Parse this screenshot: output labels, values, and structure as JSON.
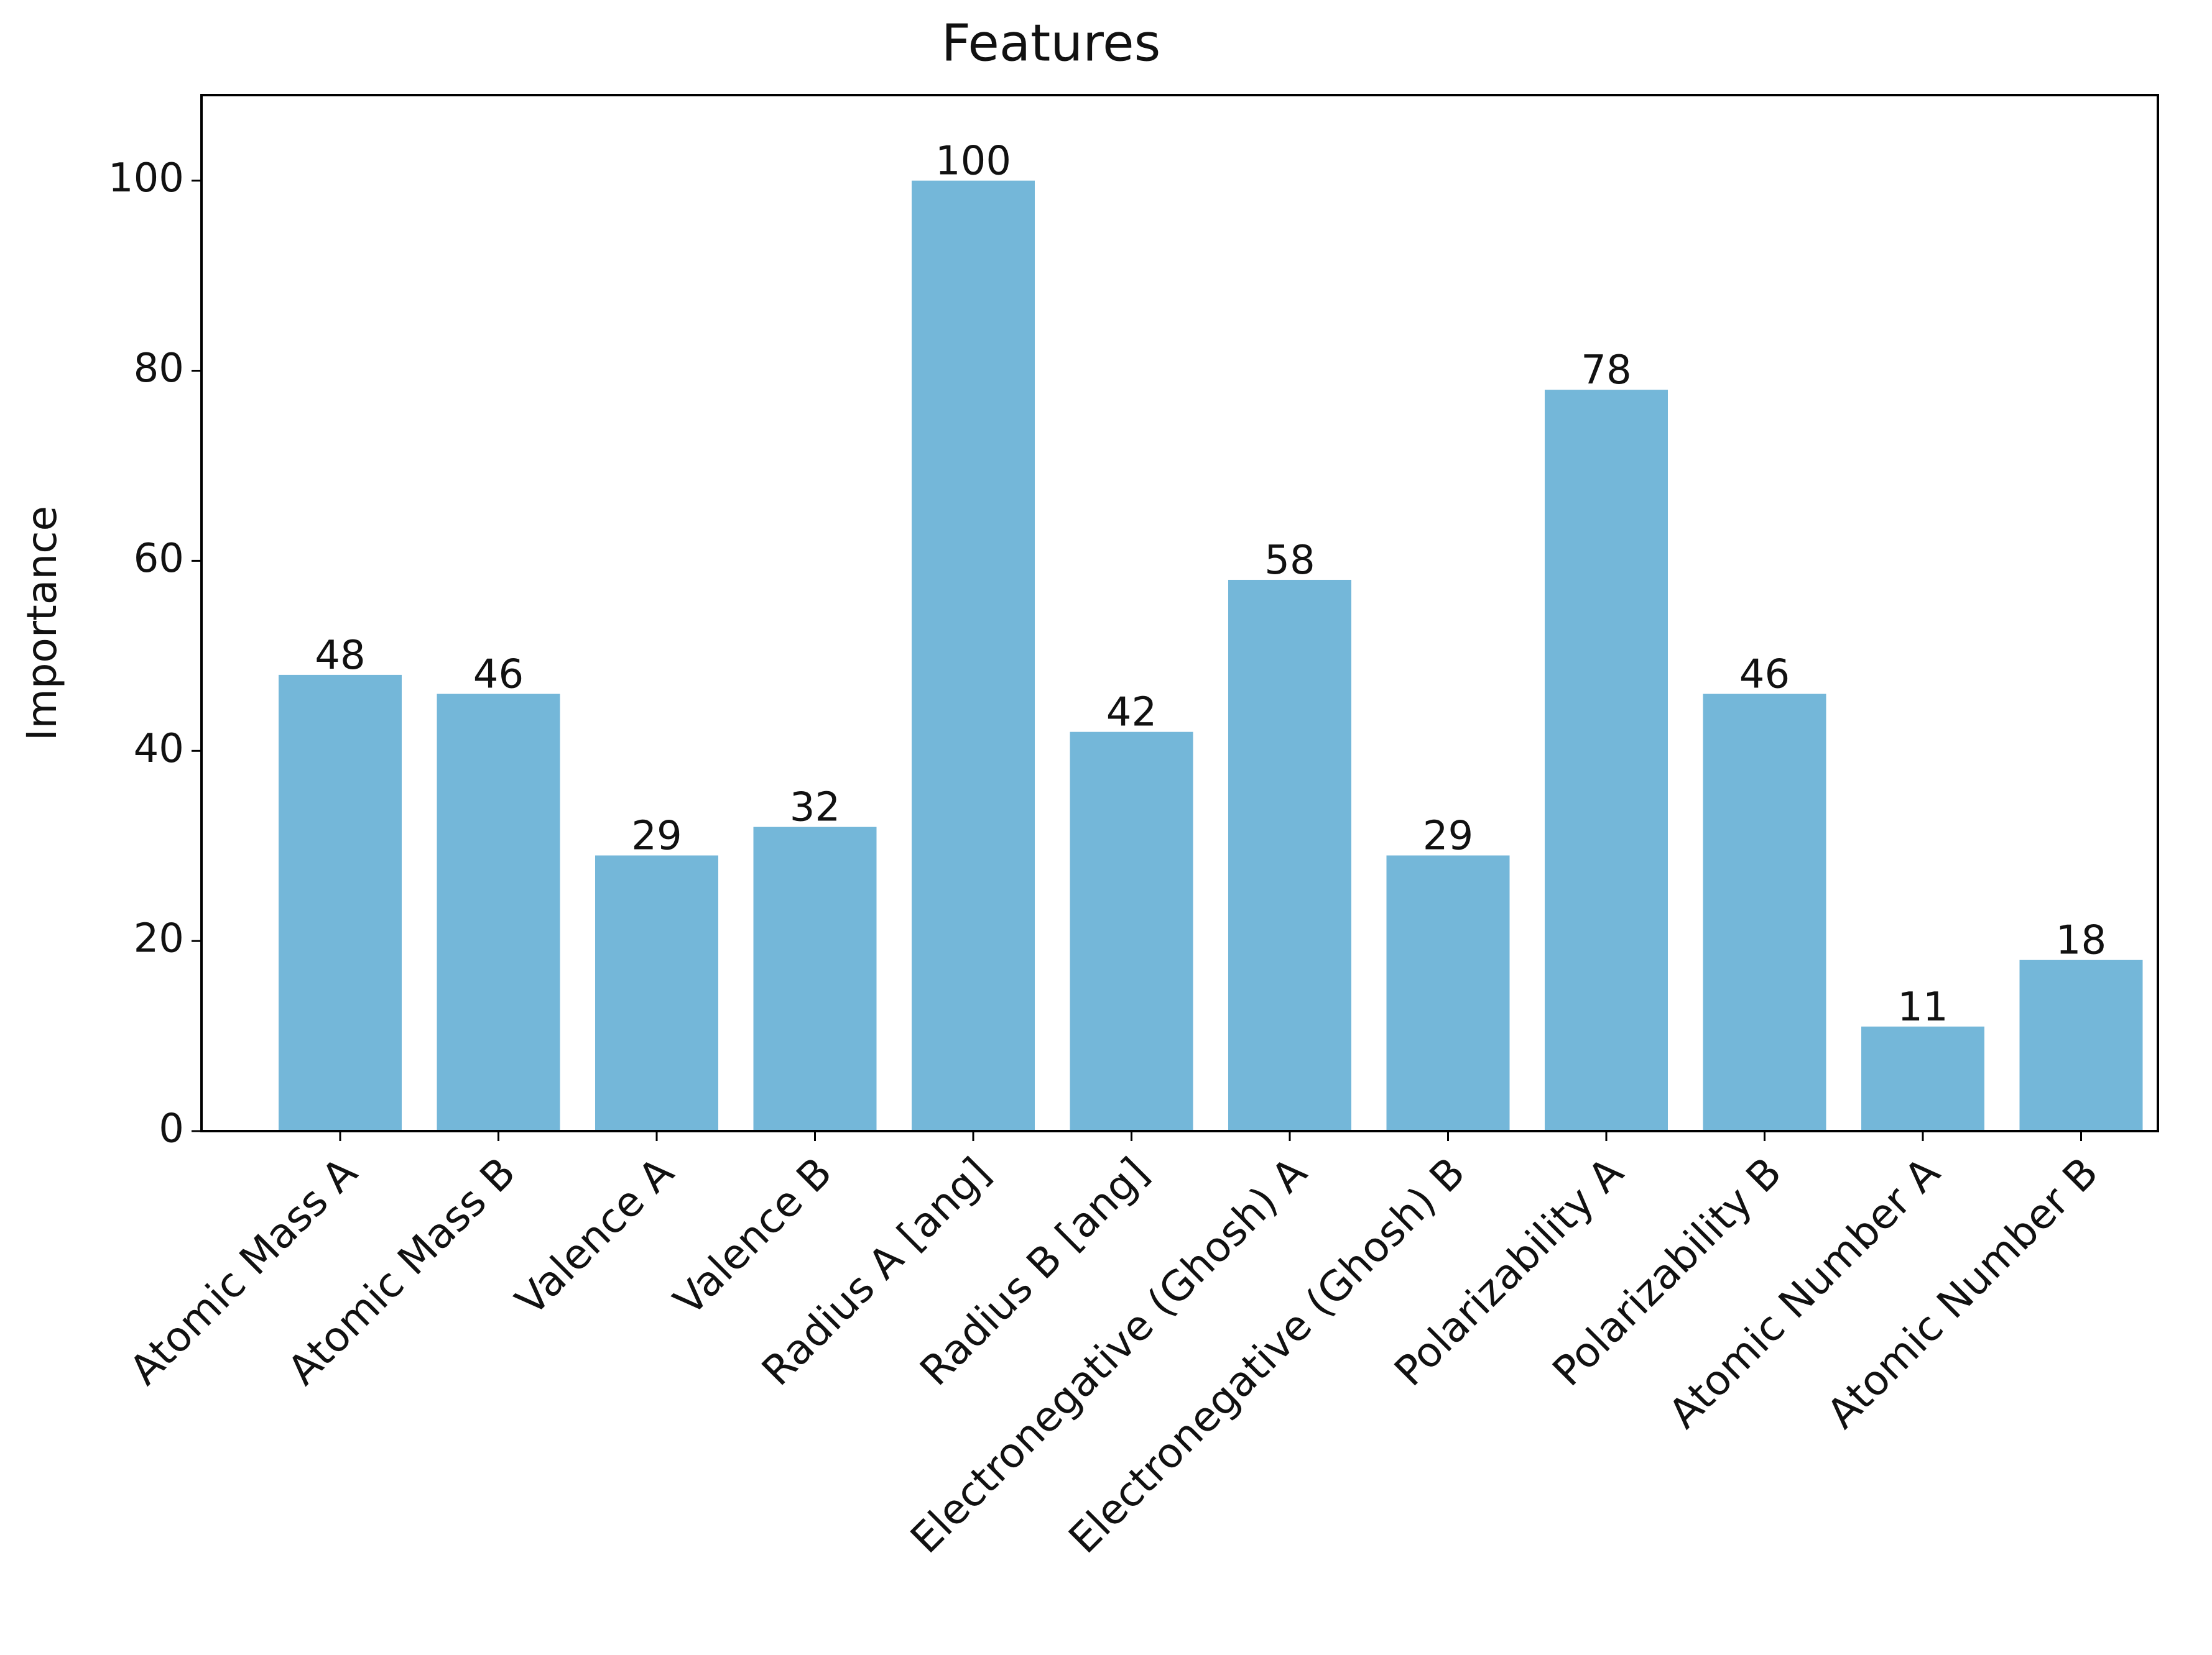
{
  "chart_data": {
    "type": "bar",
    "title": "Features",
    "ylabel": "Importance",
    "categories": [
      "Atomic  Mass  A",
      "Atomic  Mass  B",
      "Valence A",
      "Valence B",
      "Radius A [ang]",
      "Radius B [ang]",
      "Electronegative (Ghosh) A",
      "Electronegative (Ghosh) B",
      "Polarizability A",
      "Polarizability  B",
      "Atomic  Number  A",
      "Atomic  Number  B"
    ],
    "values": [
      48,
      46,
      29,
      32,
      100,
      42,
      58,
      29,
      78,
      46,
      11,
      18
    ],
    "color": "#74b7d9",
    "ylim": [
      0,
      109
    ],
    "yticks": [
      0,
      20,
      40,
      60,
      80,
      100
    ],
    "grid": false,
    "data_labels": true
  }
}
